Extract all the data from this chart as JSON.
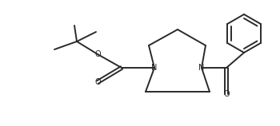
{
  "background": "#ffffff",
  "line_color": "#2a2a2a",
  "line_width": 1.4,
  "fig_width": 3.5,
  "fig_height": 1.58,
  "dpi": 100,
  "xlim": [
    0,
    350
  ],
  "ylim": [
    0,
    158
  ]
}
